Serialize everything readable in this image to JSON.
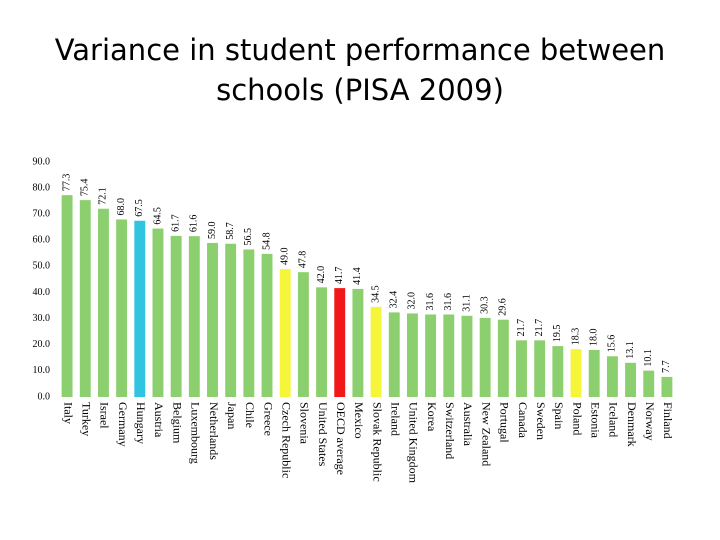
{
  "chart_data": {
    "type": "bar",
    "title": "Variance in student performance between schools (PISA 2009)",
    "categories": [
      "Italy",
      "Turkey",
      "Israel",
      "Germany",
      "Hungary",
      "Austria",
      "Belgium",
      "Luxembourg",
      "Netherlands",
      "Japan",
      "Chile",
      "Greece",
      "Czech Republic",
      "Slovenia",
      "United States",
      "OECD average",
      "Mexico",
      "Slovak Republic",
      "Ireland",
      "United Kingdom",
      "Korea",
      "Switzerland",
      "Australia",
      "New Zealand",
      "Portugal",
      "Canada",
      "Sweden",
      "Spain",
      "Poland",
      "Estonia",
      "Iceland",
      "Denmark",
      "Norway",
      "Finland"
    ],
    "values": [
      77.3,
      75.4,
      72.1,
      68.0,
      67.5,
      64.5,
      61.7,
      61.6,
      59.0,
      58.7,
      56.5,
      54.8,
      49.0,
      47.8,
      42.0,
      41.7,
      41.4,
      34.5,
      32.4,
      32.0,
      31.6,
      31.6,
      31.1,
      30.3,
      29.6,
      21.7,
      21.7,
      19.5,
      18.3,
      18.0,
      15.6,
      13.1,
      10.1,
      7.7
    ],
    "value_labels": [
      "77.3",
      "75.4",
      "72.1",
      "68.0",
      "67.5",
      "64.5",
      "61.7",
      "61.6",
      "59.0",
      "58.7",
      "56.5",
      "54.8",
      "49.0",
      "47.8",
      "42.0",
      "41.7",
      "41.4",
      "34.5",
      "32.4",
      "32.0",
      "31.6",
      "31.6",
      "31.1",
      "30.3",
      "29.6",
      "21.7",
      "21.7",
      "19.5",
      "18.3",
      "18.0",
      "15.6",
      "13.1",
      "10.1",
      "7.7"
    ],
    "colors": [
      "#8ccf6e",
      "#8ccf6e",
      "#8ccf6e",
      "#8ccf6e",
      "#2fc4e0",
      "#8ccf6e",
      "#8ccf6e",
      "#8ccf6e",
      "#8ccf6e",
      "#8ccf6e",
      "#8ccf6e",
      "#8ccf6e",
      "#f5f53a",
      "#8ccf6e",
      "#8ccf6e",
      "#f01818",
      "#8ccf6e",
      "#f5f53a",
      "#8ccf6e",
      "#8ccf6e",
      "#8ccf6e",
      "#8ccf6e",
      "#8ccf6e",
      "#8ccf6e",
      "#8ccf6e",
      "#8ccf6e",
      "#8ccf6e",
      "#8ccf6e",
      "#f5f53a",
      "#8ccf6e",
      "#8ccf6e",
      "#8ccf6e",
      "#8ccf6e",
      "#8ccf6e"
    ],
    "ylim": [
      0,
      90
    ],
    "yticks": [
      {
        "value": 0,
        "label": "0.0"
      },
      {
        "value": 10,
        "label": "10.0"
      },
      {
        "value": 20,
        "label": "20.0"
      },
      {
        "value": 30,
        "label": "30.0"
      },
      {
        "value": 40,
        "label": "40.0"
      },
      {
        "value": 50,
        "label": "50.0"
      },
      {
        "value": 60,
        "label": "60.0"
      },
      {
        "value": 70,
        "label": "70.0"
      },
      {
        "value": 80,
        "label": "80.0"
      },
      {
        "value": 90,
        "label": "90.0"
      }
    ],
    "grid": false
  }
}
